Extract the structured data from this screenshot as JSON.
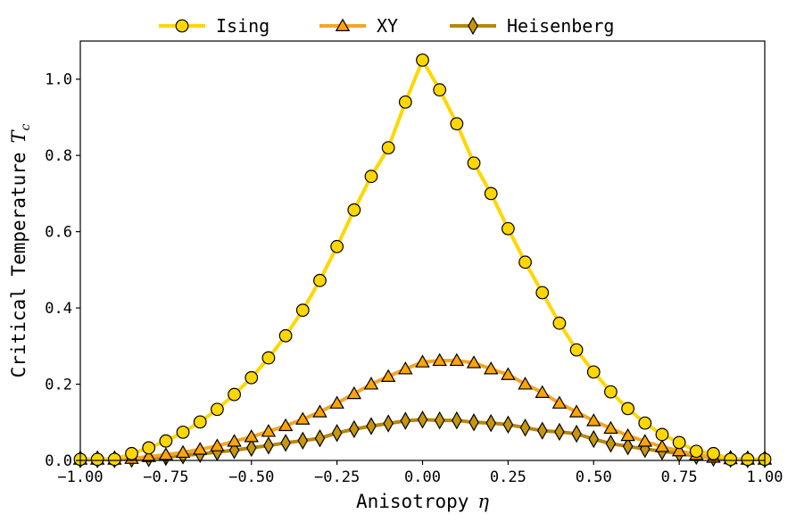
{
  "chart_data": {
    "type": "line",
    "xlabel": "Anisotropy",
    "xlabel_symbol": "η",
    "ylabel": "Critical Temperature",
    "ylabel_symbol": "T",
    "ylabel_subscript": "c",
    "xlim": [
      -1.0,
      1.0
    ],
    "ylim": [
      0.0,
      1.1
    ],
    "x_ticks": [
      "−1.00",
      "−0.75",
      "−0.50",
      "−0.25",
      "0.00",
      "0.25",
      "0.50",
      "0.75",
      "1.00"
    ],
    "y_ticks": [
      "0.0",
      "0.2",
      "0.4",
      "0.6",
      "0.8",
      "1.0"
    ],
    "legend_position": "top-center",
    "grid": false,
    "x": [
      -1.0,
      -0.95,
      -0.9,
      -0.85,
      -0.8,
      -0.75,
      -0.7,
      -0.65,
      -0.6,
      -0.55,
      -0.5,
      -0.45,
      -0.4,
      -0.35,
      -0.3,
      -0.25,
      -0.2,
      -0.15,
      -0.1,
      -0.05,
      0.0,
      0.05,
      0.1,
      0.15,
      0.2,
      0.25,
      0.3,
      0.35,
      0.4,
      0.45,
      0.5,
      0.55,
      0.6,
      0.65,
      0.7,
      0.75,
      0.8,
      0.85,
      0.9,
      0.95,
      1.0
    ],
    "series": [
      {
        "name": "Ising",
        "marker": "circle",
        "color": "#FFD700",
        "line_color": "#FFD700",
        "values": [
          0.003,
          0.003,
          0.003,
          0.018,
          0.033,
          0.051,
          0.074,
          0.101,
          0.134,
          0.173,
          0.217,
          0.269,
          0.327,
          0.394,
          0.472,
          0.561,
          0.657,
          0.745,
          0.82,
          0.94,
          1.05,
          0.972,
          0.883,
          0.78,
          0.7,
          0.608,
          0.52,
          0.44,
          0.36,
          0.29,
          0.232,
          0.18,
          0.136,
          0.098,
          0.068,
          0.047,
          0.024,
          0.018,
          0.003,
          0.003,
          0.003
        ]
      },
      {
        "name": "XY",
        "marker": "triangle",
        "color": "#FFA500",
        "line_color": "#F5A623",
        "values": [
          0.003,
          0.003,
          0.003,
          0.005,
          0.01,
          0.015,
          0.021,
          0.029,
          0.038,
          0.05,
          0.062,
          0.076,
          0.091,
          0.108,
          0.127,
          0.15,
          0.175,
          0.2,
          0.22,
          0.24,
          0.258,
          0.262,
          0.262,
          0.256,
          0.24,
          0.225,
          0.2,
          0.178,
          0.15,
          0.127,
          0.104,
          0.084,
          0.065,
          0.05,
          0.036,
          0.025,
          0.015,
          0.008,
          0.004,
          0.003,
          0.003
        ]
      },
      {
        "name": "Heisenberg",
        "marker": "diamond",
        "color": "#C8960C",
        "line_color": "#B8860B",
        "values": [
          0.003,
          0.003,
          0.003,
          0.004,
          0.006,
          0.009,
          0.013,
          0.017,
          0.022,
          0.027,
          0.033,
          0.039,
          0.046,
          0.052,
          0.058,
          0.072,
          0.082,
          0.09,
          0.097,
          0.104,
          0.107,
          0.105,
          0.105,
          0.1,
          0.098,
          0.094,
          0.086,
          0.078,
          0.075,
          0.07,
          0.056,
          0.044,
          0.037,
          0.03,
          0.024,
          0.018,
          0.012,
          0.007,
          0.004,
          0.003,
          0.003
        ]
      }
    ]
  }
}
